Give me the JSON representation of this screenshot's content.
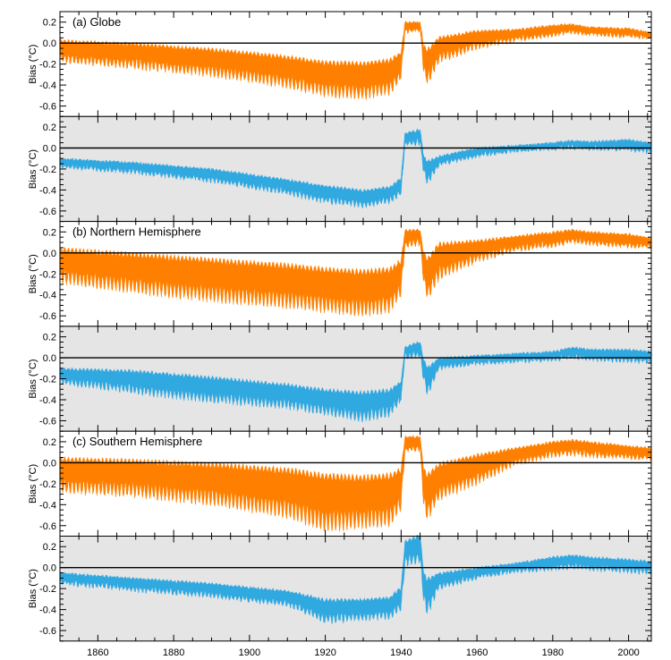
{
  "chart_data": [
    {
      "type": "area",
      "title": "(a) Globe",
      "ylabel": "Bias (°C)",
      "ylim": [
        -0.7,
        0.3
      ],
      "yticks": [
        -0.6,
        -0.4,
        -0.2,
        0.0,
        0.2
      ],
      "xlim": [
        1850,
        2006
      ],
      "background": "white",
      "fill_color": "#FF8000",
      "series": [
        {
          "x": [
            1850,
            1870,
            1890,
            1910,
            1920,
            1930,
            1937,
            1940,
            1941,
            1945,
            1946,
            1947,
            1950,
            1960,
            1970,
            1980,
            1985,
            1990,
            2000,
            2006
          ],
          "upper": [
            0.03,
            0.0,
            -0.05,
            -0.12,
            -0.17,
            -0.18,
            -0.15,
            -0.08,
            0.2,
            0.2,
            -0.02,
            -0.05,
            0.06,
            0.12,
            0.13,
            0.17,
            0.18,
            0.15,
            0.14,
            0.1
          ],
          "lower": [
            -0.18,
            -0.24,
            -0.31,
            -0.42,
            -0.5,
            -0.53,
            -0.48,
            -0.35,
            0.1,
            0.12,
            -0.3,
            -0.4,
            -0.18,
            -0.05,
            0.02,
            0.07,
            0.1,
            0.08,
            0.06,
            0.04
          ]
        }
      ]
    },
    {
      "type": "area",
      "title": "",
      "ylabel": "Bias (°C)",
      "ylim": [
        -0.7,
        0.3
      ],
      "yticks": [
        -0.6,
        -0.4,
        -0.2,
        0.0,
        0.2
      ],
      "xlim": [
        1850,
        2006
      ],
      "background": "#E5E5E5",
      "fill_color": "#30A8E0",
      "series": [
        {
          "x": [
            1850,
            1870,
            1890,
            1910,
            1920,
            1930,
            1937,
            1940,
            1941,
            1945,
            1946,
            1947,
            1950,
            1960,
            1970,
            1980,
            1985,
            1990,
            2000,
            2006
          ],
          "upper": [
            -0.1,
            -0.14,
            -0.2,
            -0.3,
            -0.36,
            -0.4,
            -0.37,
            -0.28,
            0.14,
            0.18,
            -0.08,
            -0.12,
            -0.08,
            0.0,
            0.02,
            0.05,
            0.07,
            0.06,
            0.08,
            0.05
          ],
          "lower": [
            -0.18,
            -0.24,
            -0.32,
            -0.44,
            -0.52,
            -0.56,
            -0.52,
            -0.44,
            0.02,
            0.04,
            -0.26,
            -0.34,
            -0.16,
            -0.08,
            -0.03,
            -0.01,
            0.0,
            -0.01,
            -0.02,
            -0.04
          ]
        }
      ]
    },
    {
      "type": "area",
      "title": "(b) Northern Hemisphere",
      "ylabel": "Bias (°C)",
      "ylim": [
        -0.7,
        0.3
      ],
      "yticks": [
        -0.6,
        -0.4,
        -0.2,
        0.0,
        0.2
      ],
      "xlim": [
        1850,
        2006
      ],
      "background": "white",
      "fill_color": "#FF8000",
      "series": [
        {
          "x": [
            1850,
            1870,
            1890,
            1910,
            1920,
            1930,
            1937,
            1940,
            1941,
            1945,
            1946,
            1947,
            1950,
            1960,
            1970,
            1980,
            1985,
            1990,
            2000,
            2006
          ],
          "upper": [
            0.05,
            0.0,
            -0.05,
            -0.1,
            -0.14,
            -0.16,
            -0.14,
            -0.06,
            0.22,
            0.22,
            0.0,
            -0.04,
            0.1,
            0.12,
            0.16,
            0.2,
            0.22,
            0.2,
            0.18,
            0.14
          ],
          "lower": [
            -0.28,
            -0.38,
            -0.46,
            -0.52,
            -0.56,
            -0.6,
            -0.56,
            -0.4,
            0.05,
            0.08,
            -0.32,
            -0.45,
            -0.25,
            -0.08,
            0.02,
            0.06,
            0.1,
            0.08,
            0.06,
            0.05
          ]
        }
      ]
    },
    {
      "type": "area",
      "title": "",
      "ylabel": "Bias (°C)",
      "ylim": [
        -0.7,
        0.3
      ],
      "yticks": [
        -0.6,
        -0.4,
        -0.2,
        0.0,
        0.2
      ],
      "xlim": [
        1850,
        2006
      ],
      "background": "#E5E5E5",
      "fill_color": "#30A8E0",
      "series": [
        {
          "x": [
            1850,
            1870,
            1890,
            1910,
            1920,
            1930,
            1937,
            1940,
            1941,
            1945,
            1946,
            1947,
            1950,
            1960,
            1970,
            1980,
            1985,
            1990,
            2000,
            2006
          ],
          "upper": [
            -0.1,
            -0.12,
            -0.18,
            -0.25,
            -0.3,
            -0.32,
            -0.3,
            -0.22,
            0.1,
            0.16,
            -0.02,
            -0.08,
            0.0,
            0.02,
            0.04,
            0.06,
            0.1,
            0.08,
            0.08,
            0.06
          ],
          "lower": [
            -0.24,
            -0.34,
            -0.42,
            -0.48,
            -0.54,
            -0.6,
            -0.55,
            -0.42,
            0.0,
            0.02,
            -0.24,
            -0.36,
            -0.1,
            -0.06,
            -0.04,
            -0.02,
            0.0,
            -0.02,
            -0.04,
            -0.05
          ]
        }
      ]
    },
    {
      "type": "area",
      "title": "(c) Southern Hemisphere",
      "ylabel": "Bias (°C)",
      "ylim": [
        -0.7,
        0.3
      ],
      "yticks": [
        -0.6,
        -0.4,
        -0.2,
        0.0,
        0.2
      ],
      "xlim": [
        1850,
        2006
      ],
      "background": "white",
      "fill_color": "#FF8000",
      "series": [
        {
          "x": [
            1850,
            1870,
            1890,
            1910,
            1920,
            1930,
            1937,
            1940,
            1941,
            1945,
            1946,
            1947,
            1950,
            1960,
            1970,
            1980,
            1985,
            1990,
            2000,
            2006
          ],
          "upper": [
            0.05,
            0.03,
            0.0,
            -0.05,
            -0.1,
            -0.12,
            -0.1,
            -0.05,
            0.25,
            0.25,
            -0.05,
            -0.1,
            0.0,
            0.08,
            0.14,
            0.2,
            0.22,
            0.2,
            0.16,
            0.14
          ],
          "lower": [
            -0.28,
            -0.32,
            -0.4,
            -0.52,
            -0.65,
            -0.62,
            -0.6,
            -0.45,
            0.1,
            0.12,
            -0.45,
            -0.55,
            -0.35,
            -0.2,
            -0.02,
            0.06,
            0.08,
            0.06,
            0.04,
            0.03
          ]
        }
      ]
    },
    {
      "type": "area",
      "title": "",
      "ylabel": "Bias (°C)",
      "ylim": [
        -0.7,
        0.3
      ],
      "yticks": [
        -0.6,
        -0.4,
        -0.2,
        0.0,
        0.2
      ],
      "xlim": [
        1850,
        2006
      ],
      "xlabel": "",
      "xticks": [
        1860,
        1880,
        1900,
        1920,
        1940,
        1960,
        1980,
        2000
      ],
      "background": "#E5E5E5",
      "fill_color": "#30A8E0",
      "series": [
        {
          "x": [
            1850,
            1870,
            1890,
            1910,
            1920,
            1930,
            1937,
            1940,
            1941,
            1945,
            1946,
            1947,
            1950,
            1960,
            1970,
            1980,
            1985,
            1990,
            2000,
            2006
          ],
          "upper": [
            -0.05,
            -0.1,
            -0.15,
            -0.22,
            -0.3,
            -0.3,
            -0.28,
            -0.18,
            0.25,
            0.32,
            -0.05,
            -0.1,
            -0.05,
            0.0,
            0.04,
            0.1,
            0.12,
            0.1,
            0.08,
            0.06
          ],
          "lower": [
            -0.15,
            -0.22,
            -0.28,
            -0.36,
            -0.52,
            -0.5,
            -0.48,
            -0.4,
            0.02,
            0.05,
            -0.35,
            -0.45,
            -0.2,
            -0.1,
            -0.04,
            -0.02,
            0.0,
            -0.02,
            -0.04,
            -0.05
          ]
        }
      ]
    }
  ]
}
